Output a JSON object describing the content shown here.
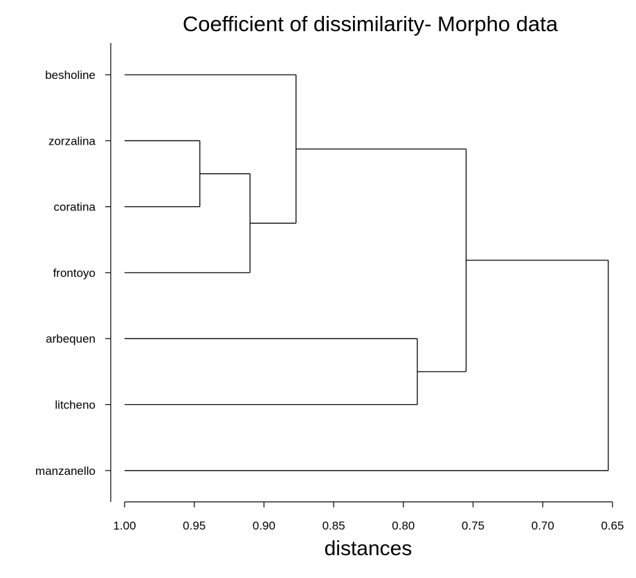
{
  "chart_data": {
    "type": "dendrogram",
    "title": "Coefficient of dissimilarity- Morpho data",
    "xlabel": "distances",
    "ylabel": "",
    "xlim": [
      1.0,
      0.65
    ],
    "x_axis_reversed": true,
    "xticks": [
      "1.00",
      "0.95",
      "0.90",
      "0.85",
      "0.80",
      "0.75",
      "0.70",
      "0.65"
    ],
    "xtick_values": [
      1.0,
      0.95,
      0.9,
      0.85,
      0.8,
      0.75,
      0.7,
      0.65
    ],
    "leaves": [
      "besholine",
      "zorzalina",
      "coratina",
      "frontoyo",
      "arbequen",
      "litcheno",
      "manzanello"
    ],
    "merges": [
      {
        "id": "m1",
        "children": [
          "zorzalina",
          "coratina"
        ],
        "height": 0.946,
        "color": "#3b3f7a"
      },
      {
        "id": "m2",
        "children": [
          "m1",
          "frontoyo"
        ],
        "height": 0.91,
        "color": "#000000"
      },
      {
        "id": "m3",
        "children": [
          "besholine",
          "m2"
        ],
        "height": 0.877,
        "color": "#000000"
      },
      {
        "id": "m4",
        "children": [
          "arbequen",
          "litcheno"
        ],
        "height": 0.79,
        "color": "#000000"
      },
      {
        "id": "m5",
        "children": [
          "m3",
          "m4"
        ],
        "height": 0.755,
        "color": "#000000"
      },
      {
        "id": "m6",
        "children": [
          "m5",
          "manzanello"
        ],
        "height": 0.653,
        "color": "#000000"
      }
    ],
    "leaf_start_value": 1.0,
    "grid": false,
    "legend": "none"
  }
}
